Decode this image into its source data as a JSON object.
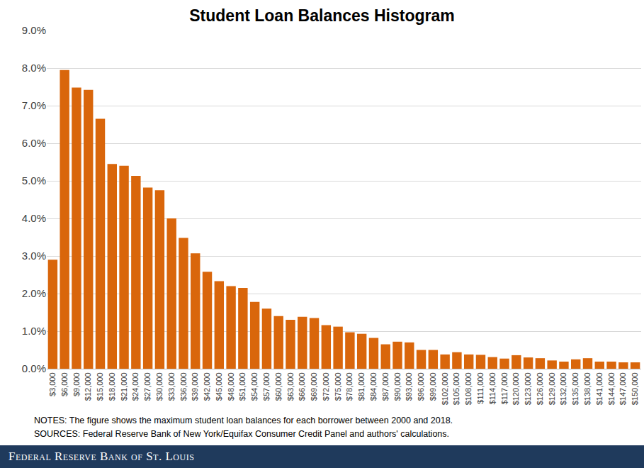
{
  "chart_data": {
    "type": "bar",
    "title": "Student Loan Balances Histogram",
    "categories": [
      "$3,000",
      "$6,000",
      "$9,000",
      "$12,000",
      "$15,000",
      "$18,000",
      "$21,000",
      "$24,000",
      "$27,000",
      "$30,000",
      "$33,000",
      "$36,000",
      "$39,000",
      "$42,000",
      "$45,000",
      "$48,000",
      "$51,000",
      "$54,000",
      "$57,000",
      "$60,000",
      "$63,000",
      "$66,000",
      "$69,000",
      "$72,000",
      "$75,000",
      "$78,000",
      "$81,000",
      "$84,000",
      "$87,000",
      "$90,000",
      "$93,000",
      "$96,000",
      "$99,000",
      "$102,000",
      "$105,000",
      "$108,000",
      "$111,000",
      "$114,000",
      "$117,000",
      "$120,000",
      "$123,000",
      "$126,000",
      "$129,000",
      "$132,000",
      "$135,000",
      "$138,000",
      "$141,000",
      "$144,000",
      "$147,000",
      "$150,000"
    ],
    "values": [
      2.9,
      7.95,
      7.48,
      7.42,
      6.65,
      5.45,
      5.4,
      5.13,
      4.82,
      4.75,
      4.0,
      3.48,
      3.07,
      2.58,
      2.33,
      2.2,
      2.15,
      1.78,
      1.6,
      1.4,
      1.3,
      1.38,
      1.35,
      1.16,
      1.12,
      0.97,
      0.93,
      0.82,
      0.65,
      0.72,
      0.7,
      0.5,
      0.5,
      0.38,
      0.44,
      0.38,
      0.37,
      0.31,
      0.27,
      0.36,
      0.3,
      0.28,
      0.22,
      0.19,
      0.25,
      0.28,
      0.19,
      0.19,
      0.17,
      0.17
    ],
    "color": "#d9660b",
    "ylim": [
      0,
      9
    ],
    "yticks": [
      {
        "value": 0,
        "label": "0.0%"
      },
      {
        "value": 1,
        "label": "1.0%"
      },
      {
        "value": 2,
        "label": "2.0%"
      },
      {
        "value": 3,
        "label": "3.0%"
      },
      {
        "value": 4,
        "label": "4.0%"
      },
      {
        "value": 5,
        "label": "5.0%"
      },
      {
        "value": 6,
        "label": "6.0%"
      },
      {
        "value": 7,
        "label": "7.0%"
      },
      {
        "value": 8,
        "label": "8.0%"
      },
      {
        "value": 9,
        "label": "9.0%"
      }
    ],
    "grid": true,
    "notes": "NOTES: The figure shows the maximum student loan balances for each borrower between 2000 and 2018.",
    "source": "SOURCES: Federal Reserve Bank of New York/Equifax Consumer Credit Panel and authors' calculations.",
    "footer": "Federal Reserve Bank of St. Louis"
  }
}
